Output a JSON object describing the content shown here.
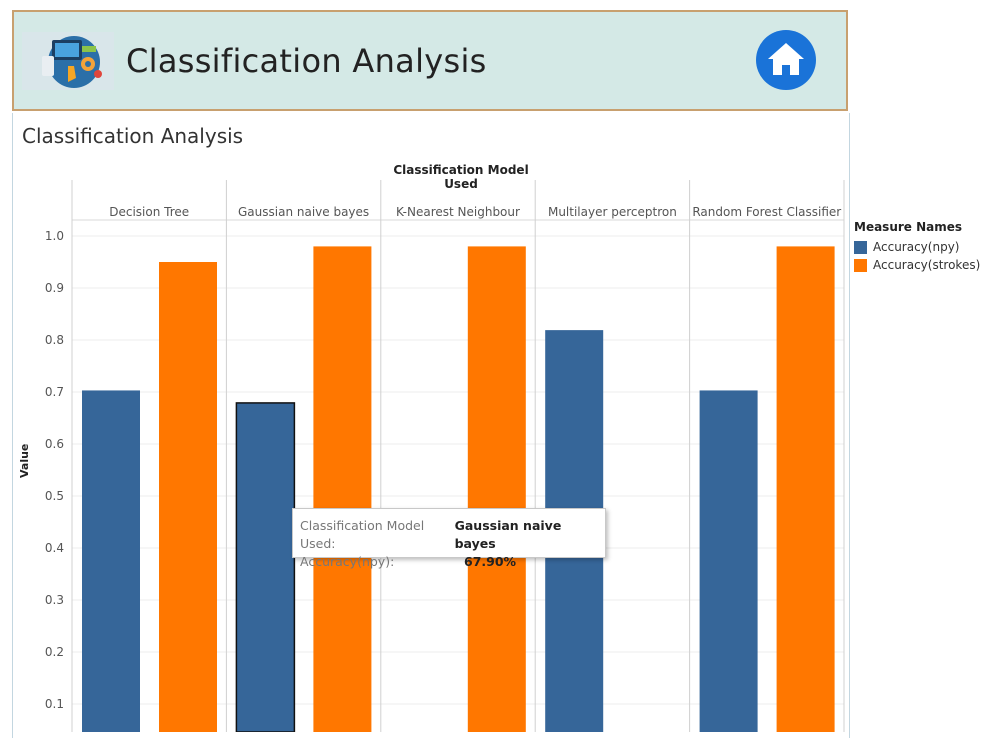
{
  "header": {
    "title": "Classification Analysis",
    "logo_icon": "classification-logo-icon",
    "home_icon": "home-icon"
  },
  "sheet": {
    "title": "Classification Analysis"
  },
  "legend": {
    "title": "Measure Names",
    "items": [
      {
        "label": "Accuracy(npy)",
        "color": "#366699"
      },
      {
        "label": "Accuracy(strokes)",
        "color": "#ff7700"
      }
    ]
  },
  "tooltip": {
    "model_label": "Classification Model Used:",
    "model_value": "Gaussian naive bayes",
    "metric_label": "Accuracy(npy):",
    "metric_value": "67.90%"
  },
  "chart_data": {
    "type": "bar",
    "title": "Classification Model Used",
    "xlabel": "Classification Model Used",
    "ylabel": "Value",
    "categories": [
      "Decision Tree",
      "Gaussian naive bayes",
      "K-Nearest Neighbour",
      "Multilayer perceptron",
      "Random Forest Classifier"
    ],
    "series": [
      {
        "name": "Accuracy(npy)",
        "color": "#366699",
        "values": [
          0.703,
          0.679,
          0.0,
          0.819,
          0.703
        ]
      },
      {
        "name": "Accuracy(strokes)",
        "color": "#ff7700",
        "values": [
          0.95,
          0.98,
          0.98,
          0.0,
          0.98
        ]
      }
    ],
    "yticks": [
      "0.1",
      "0.2",
      "0.3",
      "0.4",
      "0.5",
      "0.6",
      "0.7",
      "0.8",
      "0.9",
      "1.0"
    ],
    "ylim": [
      0,
      1.05
    ],
    "highlight": {
      "series": 0,
      "category": 1
    },
    "grid": true,
    "legend_position": "right"
  }
}
